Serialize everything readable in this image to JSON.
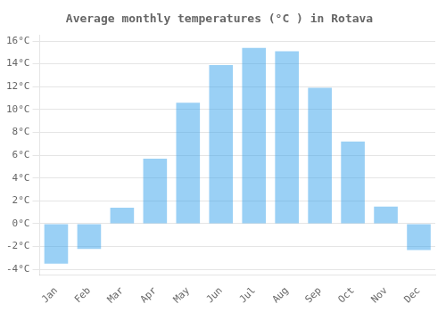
{
  "chart_data": {
    "type": "bar",
    "title": "Average monthly temperatures (°C ) in Rotava",
    "categories": [
      "Jan",
      "Feb",
      "Mar",
      "Apr",
      "May",
      "Jun",
      "Jul",
      "Aug",
      "Sep",
      "Oct",
      "Nov",
      "Dec"
    ],
    "values": [
      -3.5,
      -2.2,
      1.4,
      5.7,
      10.6,
      13.9,
      15.4,
      15.1,
      11.9,
      7.2,
      1.5,
      -2.3
    ],
    "ylim": [
      -4.5,
      16.5
    ],
    "yticks": [
      {
        "value": -4,
        "label": "-4°C"
      },
      {
        "value": -2,
        "label": "-2°C"
      },
      {
        "value": 0,
        "label": "0°C"
      },
      {
        "value": 2,
        "label": "2°C"
      },
      {
        "value": 4,
        "label": "4°C"
      },
      {
        "value": 6,
        "label": "6°C"
      },
      {
        "value": 8,
        "label": "8°C"
      },
      {
        "value": 10,
        "label": "10°C"
      },
      {
        "value": 12,
        "label": "12°C"
      },
      {
        "value": 14,
        "label": "14°C"
      },
      {
        "value": 16,
        "label": "16°C"
      }
    ],
    "grid": true
  }
}
